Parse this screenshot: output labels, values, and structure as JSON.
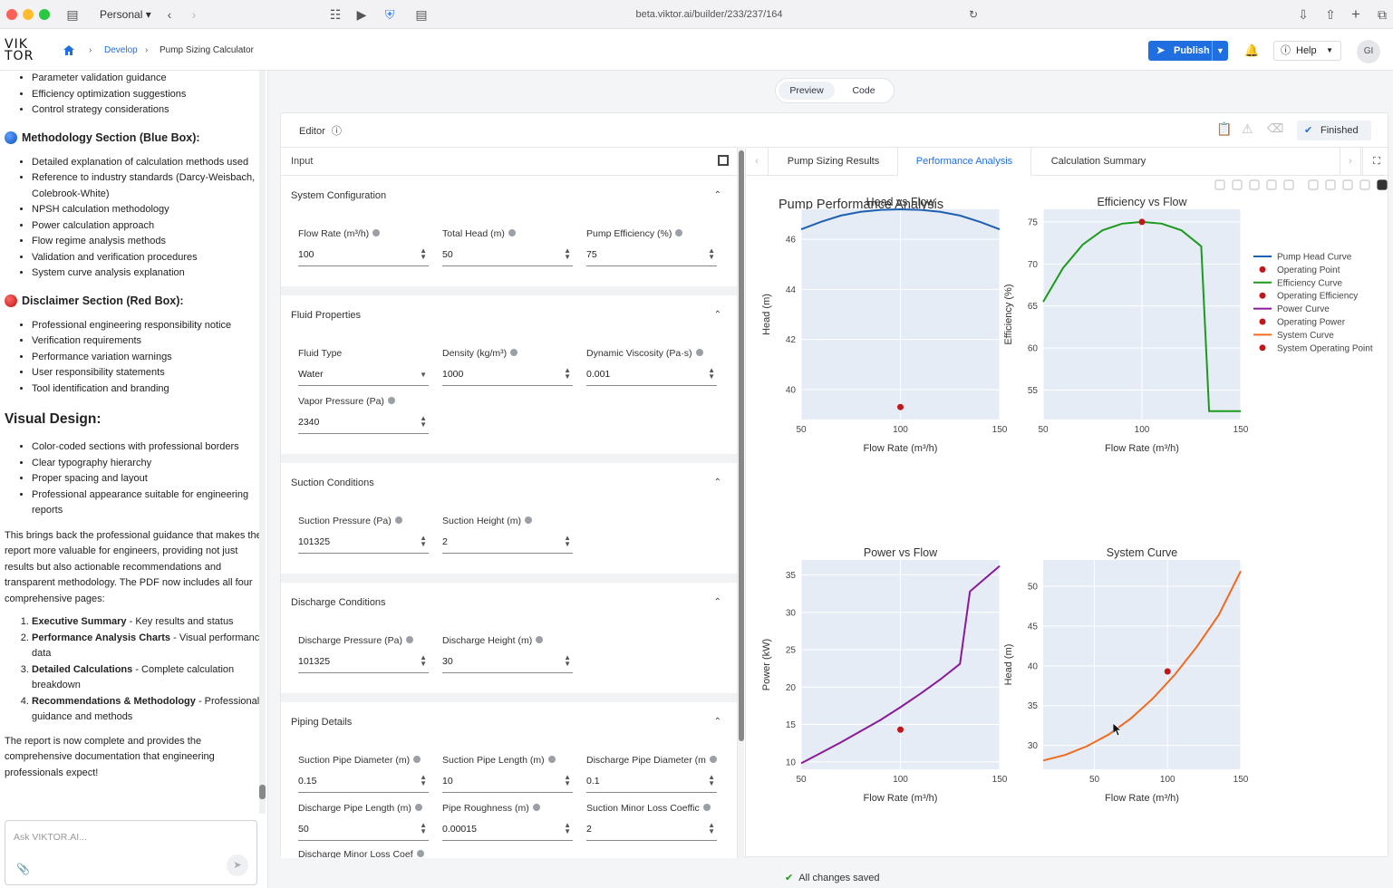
{
  "browser": {
    "profile": "Personal",
    "url": "beta.viktor.ai/builder/233/237/164"
  },
  "app": {
    "logo_line1": "VIK",
    "logo_line2": "TOR",
    "breadcrumb": [
      "Develop",
      "Pump Sizing Calculator"
    ],
    "publish_label": "Publish",
    "help_label": "Help",
    "avatar_initials": "GI"
  },
  "chat": {
    "list_top": [
      "Parameter validation guidance",
      "Efficiency optimization suggestions",
      "Control strategy considerations"
    ],
    "methodology_heading": "Methodology Section (Blue Box):",
    "methodology_items": [
      "Detailed explanation of calculation methods used",
      "Reference to industry standards (Darcy-Weisbach, Colebrook-White)",
      "NPSH calculation methodology",
      "Power calculation approach",
      "Flow regime analysis methods",
      "Validation and verification procedures",
      "System curve analysis explanation"
    ],
    "disclaimer_heading": "Disclaimer Section (Red Box):",
    "disclaimer_items": [
      "Professional engineering responsibility notice",
      "Verification requirements",
      "Performance variation warnings",
      "User responsibility statements",
      "Tool identification and branding"
    ],
    "visual_heading": "Visual Design:",
    "visual_items": [
      "Color-coded sections with professional borders",
      "Clear typography hierarchy",
      "Proper spacing and layout",
      "Professional appearance suitable for engineering reports"
    ],
    "paragraph1": "This brings back the professional guidance that makes the report more valuable for engineers, providing not just results but also actionable recommendations and transparent methodology. The PDF now includes all four comprehensive pages:",
    "pages": [
      {
        "bold": "Executive Summary",
        "rest": " - Key results and status"
      },
      {
        "bold": "Performance Analysis Charts",
        "rest": " - Visual performance data"
      },
      {
        "bold": "Detailed Calculations",
        "rest": " - Complete calculation breakdown"
      },
      {
        "bold": "Recommendations & Methodology",
        "rest": " - Professional guidance and methods"
      }
    ],
    "paragraph2": "The report is now complete and provides the comprehensive documentation that engineering professionals expect!",
    "ask_placeholder": "Ask VIKTOR.AI..."
  },
  "view": {
    "preview_label": "Preview",
    "code_label": "Code",
    "editor_label": "Editor",
    "status_label": "Finished",
    "input_label": "Input",
    "save_status": "All changes saved"
  },
  "sections": {
    "system": {
      "title": "System Configuration",
      "flow_label": "Flow Rate (m³/h)",
      "flow": "100",
      "head_label": "Total Head (m)",
      "head": "50",
      "eff_label": "Pump Efficiency (%)",
      "eff": "75"
    },
    "fluid": {
      "title": "Fluid Properties",
      "type_label": "Fluid Type",
      "type": "Water",
      "density_label": "Density (kg/m³)",
      "density": "1000",
      "visc_label": "Dynamic Viscosity (Pa·s)",
      "visc": "0.001",
      "vapor_label": "Vapor Pressure (Pa)",
      "vapor": "2340"
    },
    "suction": {
      "title": "Suction Conditions",
      "p_label": "Suction Pressure (Pa)",
      "p": "101325",
      "h_label": "Suction Height (m)",
      "h": "2"
    },
    "discharge": {
      "title": "Discharge Conditions",
      "p_label": "Discharge Pressure (Pa)",
      "p": "101325",
      "h_label": "Discharge Height (m)",
      "h": "30"
    },
    "piping": {
      "title": "Piping Details",
      "sd_label": "Suction Pipe Diameter (m)",
      "sd": "0.15",
      "sl_label": "Suction Pipe Length (m)",
      "sl": "10",
      "dd_label": "Discharge Pipe Diameter (m",
      "dd": "0.1",
      "dl_label": "Discharge Pipe Length (m)",
      "dl": "50",
      "r_label": "Pipe Roughness (m)",
      "r": "0.00015",
      "sm_label": "Suction Minor Loss Coeffic",
      "sm": "2",
      "dm_label": "Discharge Minor Loss Coef"
    }
  },
  "tabs": [
    "Pump Sizing Results",
    "Performance Analysis",
    "Calculation Summary"
  ],
  "colors": {
    "pump": "#1f5fb0",
    "eff": "#1c9a1c",
    "power": "#8a1a9a",
    "system": "#f06a1e",
    "point": "#c0171b",
    "plotbg": "#e5ecf6"
  },
  "chart_data": {
    "type": "line",
    "title": "Pump Performance Analysis",
    "legend": [
      "Pump Head Curve",
      "Operating Point",
      "Efficiency Curve",
      "Operating Efficiency",
      "Power Curve",
      "Operating Power",
      "System Curve",
      "System Operating Point"
    ],
    "legend_position": "right",
    "subplots": [
      {
        "title": "Head vs Flow",
        "xlabel": "Flow Rate (m³/h)",
        "ylabel": "Head (m)",
        "xlim": [
          50,
          150
        ],
        "ylim": [
          38.8,
          47.2
        ],
        "xticks": [
          50,
          100,
          150
        ],
        "yticks": [
          40,
          42,
          44,
          46
        ],
        "series": [
          {
            "color_key": "pump",
            "x": [
              50,
              60,
              70,
              80,
              90,
              100,
              110,
              120,
              130,
              140,
              150
            ],
            "y": [
              46.4,
              46.7,
              46.95,
              47.1,
              47.18,
              47.2,
              47.18,
              47.1,
              46.95,
              46.7,
              46.4
            ]
          }
        ],
        "point": {
          "x": 100,
          "y": 39.3
        }
      },
      {
        "title": "Efficiency vs Flow",
        "xlabel": "Flow Rate (m³/h)",
        "ylabel": "Efficiency (%)",
        "xlim": [
          50,
          150
        ],
        "ylim": [
          51.5,
          76.5
        ],
        "xticks": [
          50,
          100,
          150
        ],
        "yticks": [
          55,
          60,
          65,
          70,
          75
        ],
        "series": [
          {
            "color_key": "eff",
            "x": [
              50,
              60,
              70,
              80,
              90,
              100,
              110,
              120,
              130,
              134,
              150
            ],
            "y": [
              65.5,
              69.5,
              72.3,
              74.0,
              74.8,
              75.0,
              74.8,
              74.0,
              72.1,
              52.5,
              52.5
            ]
          }
        ],
        "point": {
          "x": 100,
          "y": 75
        }
      },
      {
        "title": "Power vs Flow",
        "xlabel": "Flow Rate (m³/h)",
        "ylabel": "Power (kW)",
        "xlim": [
          50,
          150
        ],
        "ylim": [
          9,
          37
        ],
        "xticks": [
          50,
          100,
          150
        ],
        "yticks": [
          10,
          15,
          20,
          25,
          30,
          35
        ],
        "series": [
          {
            "color_key": "power",
            "x": [
              50,
              60,
              70,
              80,
              90,
              100,
              110,
              120,
              130,
              135,
              150
            ],
            "y": [
              9.8,
              11.2,
              12.6,
              14.1,
              15.6,
              17.3,
              19.1,
              21.0,
              23.1,
              32.8,
              36.2
            ]
          }
        ],
        "point": {
          "x": 100,
          "y": 14.3
        }
      },
      {
        "title": "System Curve",
        "xlabel": "Flow Rate (m³/h)",
        "ylabel": "Head (m)",
        "xlim": [
          15,
          150
        ],
        "ylim": [
          27,
          53.3
        ],
        "xticks": [
          50,
          100,
          150
        ],
        "yticks": [
          30,
          35,
          40,
          45,
          50
        ],
        "series": [
          {
            "color_key": "system",
            "x": [
              15,
              30,
              45,
              60,
              75,
              90,
              105,
              120,
              135,
              150
            ],
            "y": [
              28.1,
              28.8,
              29.9,
              31.4,
              33.4,
              35.9,
              38.9,
              42.4,
              46.4,
              51.9
            ]
          }
        ],
        "point": {
          "x": 100,
          "y": 39.3
        }
      }
    ]
  }
}
